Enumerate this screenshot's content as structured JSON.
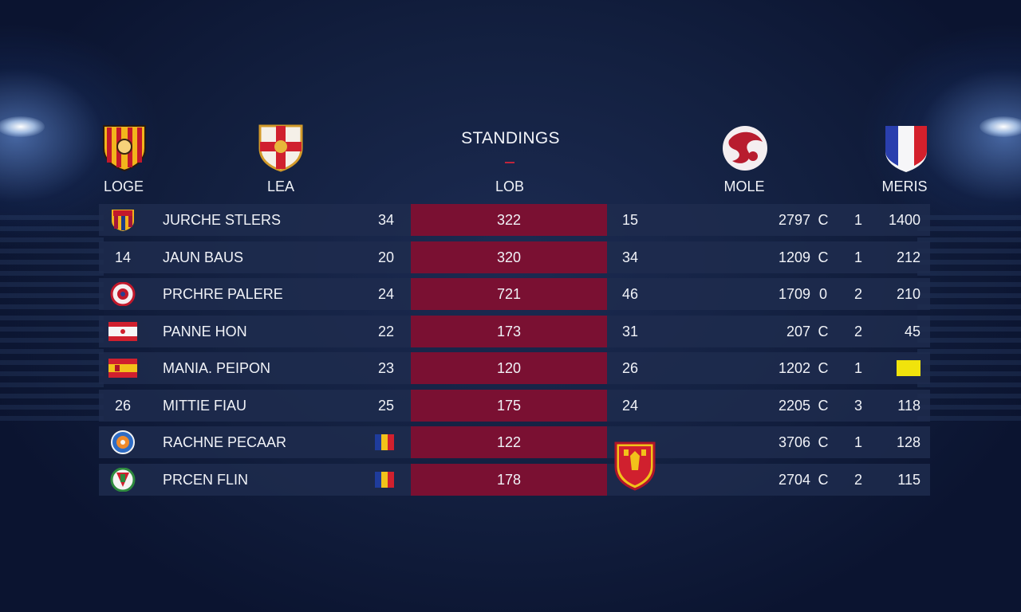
{
  "header": {
    "title": "STANDINGS",
    "columns": [
      "LOGE",
      "LEA",
      "LOB",
      "MOLE",
      "MERIS"
    ],
    "crest_icons": [
      "striped-shield-crest-icon",
      "red-white-shield-crest-icon",
      "red-white-round-emblem-icon",
      "tricolor-shield-flag-icon"
    ]
  },
  "rows": [
    {
      "pos": "",
      "logo": "blaugrana-crest-icon",
      "name": "JURCHE STLERS",
      "c1": "34",
      "flag": "",
      "lob": "322",
      "c3": "15",
      "c4": "2797",
      "c5": "C",
      "c6": "1",
      "c7": "1400"
    },
    {
      "pos": "14",
      "logo": "",
      "name": "JAUN BAUS",
      "c1": "20",
      "flag": "",
      "lob": "320",
      "c3": "34",
      "c4": "1209",
      "c5": "C",
      "c6": "1",
      "c7": "212"
    },
    {
      "pos": "",
      "logo": "round-red-badge-icon",
      "name": "PRCHRE PALERE",
      "c1": "24",
      "flag": "",
      "lob": "721",
      "c3": "46",
      "c4": "1709",
      "c5": "0",
      "c6": "2",
      "c7": "210"
    },
    {
      "pos": "",
      "logo": "red-white-flag-icon",
      "name": "PANNE HON",
      "c1": "22",
      "flag": "",
      "lob": "173",
      "c3": "31",
      "c4": "207",
      "c5": "C",
      "c6": "2",
      "c7": "45"
    },
    {
      "pos": "",
      "logo": "red-yellow-flag-icon",
      "name": "MANIA. PEIPON",
      "c1": "23",
      "flag": "",
      "lob": "120",
      "c3": "26",
      "c4": "1202",
      "c5": "C",
      "c6": "1",
      "c7": ""
    },
    {
      "pos": "26",
      "logo": "",
      "name": "MITTIE FIAU",
      "c1": "25",
      "flag": "",
      "lob": "175",
      "c3": "24",
      "c4": "2205",
      "c5": "C",
      "c6": "3",
      "c7": "118"
    },
    {
      "pos": "",
      "logo": "blue-orange-round-badge-icon",
      "name": "RACHNE PECAAR",
      "c1": "",
      "flag": "tricolor-flag-icon",
      "lob": "122",
      "c3": "",
      "c4": "3706",
      "c5": "C",
      "c6": "1",
      "c7": "128"
    },
    {
      "pos": "",
      "logo": "green-red-round-badge-icon",
      "name": "PRCEN FLIN",
      "c1": "",
      "flag": "tricolor-flag-icon",
      "lob": "178",
      "c3": "",
      "c4": "2704",
      "c5": "C",
      "c6": "2",
      "c7": "115"
    }
  ],
  "overlay_icon": "red-yellow-devil-crest-icon",
  "colors": {
    "lob_band": "#7a1032",
    "row_bg": "#1e2c4e",
    "accent": "#c0243b",
    "highlight_box": "#f0e30c"
  }
}
